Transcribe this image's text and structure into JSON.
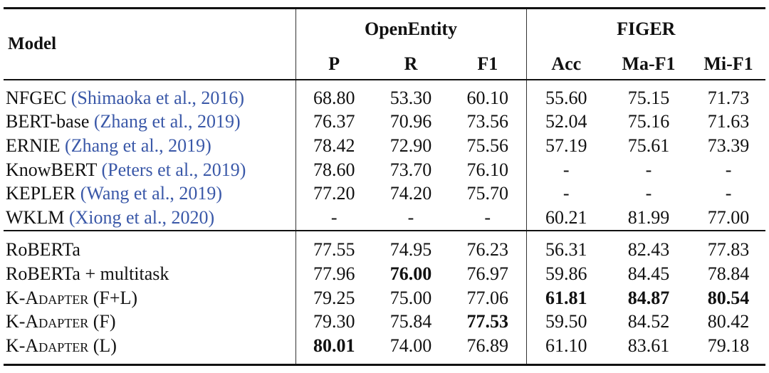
{
  "table": {
    "header": {
      "model": "Model",
      "groups": [
        "OpenEntity",
        "FIGER"
      ],
      "columns": [
        "P",
        "R",
        "F1",
        "Acc",
        "Ma-F1",
        "Mi-F1"
      ]
    },
    "groups": [
      {
        "rows": [
          {
            "model": "NFGEC",
            "cite": "(Shimaoka et al., 2016)",
            "cells": [
              "68.80",
              "53.30",
              "60.10",
              "55.60",
              "75.15",
              "71.73"
            ],
            "bold": []
          },
          {
            "model": "BERT-base",
            "cite": "(Zhang et al., 2019)",
            "cells": [
              "76.37",
              "70.96",
              "73.56",
              "52.04",
              "75.16",
              "71.63"
            ],
            "bold": []
          },
          {
            "model": "ERNIE",
            "cite": "(Zhang et al., 2019)",
            "cells": [
              "78.42",
              "72.90",
              "75.56",
              "57.19",
              "75.61",
              "73.39"
            ],
            "bold": []
          },
          {
            "model": "KnowBERT",
            "cite": "(Peters et al., 2019)",
            "cells": [
              "78.60",
              "73.70",
              "76.10",
              "-",
              "-",
              "-"
            ],
            "bold": []
          },
          {
            "model": "KEPLER",
            "cite": "(Wang et al., 2019)",
            "cells": [
              "77.20",
              "74.20",
              "75.70",
              "-",
              "-",
              "-"
            ],
            "bold": []
          },
          {
            "model": "WKLM",
            "cite": "(Xiong et al., 2020)",
            "cells": [
              "-",
              "-",
              "-",
              "60.21",
              "81.99",
              "77.00"
            ],
            "bold": []
          }
        ]
      },
      {
        "rows": [
          {
            "model": "RoBERTa",
            "cells": [
              "77.55",
              "74.95",
              "76.23",
              "56.31",
              "82.43",
              "77.83"
            ],
            "bold": []
          },
          {
            "model": "RoBERTa + multitask",
            "cells": [
              "77.96",
              "76.00",
              "76.97",
              "59.86",
              "84.45",
              "78.84"
            ],
            "bold": [
              1
            ]
          },
          {
            "model": "K-Adapter (F+L)",
            "smallcaps": true,
            "cells": [
              "79.25",
              "75.00",
              "77.06",
              "61.81",
              "84.87",
              "80.54"
            ],
            "bold": [
              3,
              4,
              5
            ]
          },
          {
            "model": "K-Adapter (F)",
            "smallcaps": true,
            "cells": [
              "79.30",
              "75.84",
              "77.53",
              "59.50",
              "84.52",
              "80.42"
            ],
            "bold": [
              2
            ]
          },
          {
            "model": "K-Adapter (L)",
            "smallcaps": true,
            "cells": [
              "80.01",
              "74.00",
              "76.89",
              "61.10",
              "83.61",
              "79.18"
            ],
            "bold": [
              0
            ]
          }
        ]
      }
    ]
  }
}
